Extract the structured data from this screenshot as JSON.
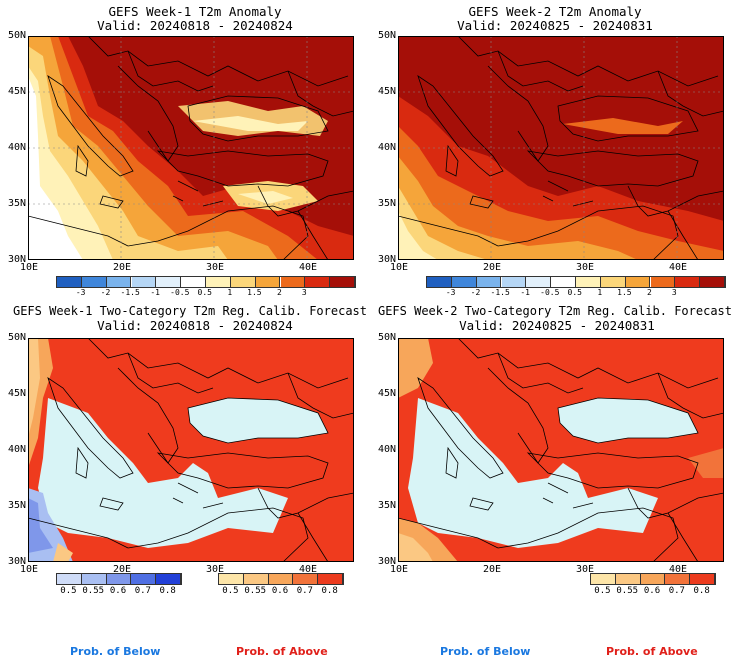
{
  "panels": [
    {
      "title": "GEFS Week-1 T2m Anomaly",
      "valid": "Valid: 20240818 - 20240824"
    },
    {
      "title": "GEFS Week-2 T2m Anomaly",
      "valid": "Valid: 20240825 - 20240831"
    },
    {
      "title": "GEFS Week-1 Two-Category T2m Reg. Calib. Forecast",
      "valid": "Valid: 20240818 - 20240824"
    },
    {
      "title": "GEFS Week-2 Two-Category T2m Reg. Calib. Forecast",
      "valid": "Valid: 20240825 - 20240831"
    }
  ],
  "lat_labels": [
    "50N",
    "45N",
    "40N",
    "35N",
    "30N"
  ],
  "lon_labels": [
    "10E",
    "20E",
    "30E",
    "40E"
  ],
  "anomaly_colorbar": {
    "ticks": [
      "-3",
      "-2",
      "-1.5",
      "-1",
      "-0.5",
      "0.5",
      "1",
      "1.5",
      "2",
      "3"
    ],
    "colors": [
      "#1f5fc0",
      "#3f86db",
      "#7ab3ec",
      "#b5d6f5",
      "#e2f0fb",
      "#ffffff",
      "#fff2b8",
      "#fbd67a",
      "#f5a53a",
      "#ec6a1c",
      "#d92a10",
      "#a50f08"
    ]
  },
  "below_colorbar": {
    "ticks": [
      "0.5",
      "0.55",
      "0.6",
      "0.7",
      "0.8"
    ],
    "colors": [
      "#cfdcf8",
      "#a9bff2",
      "#7f97ea",
      "#4f6fe3",
      "#2240d8"
    ]
  },
  "above_colorbar": {
    "ticks": [
      "0.5",
      "0.55",
      "0.6",
      "0.7",
      "0.8"
    ],
    "colors": [
      "#fde5a8",
      "#fbc883",
      "#f7a65a",
      "#f2733a",
      "#ec3b1e"
    ]
  },
  "legend": {
    "below": "Prob. of Below",
    "above": "Prob. of Above",
    "below_color": "#1a78e0",
    "above_color": "#e0201a"
  },
  "colors": {
    "sea": "#d8f4f6",
    "land_above": "#ef3b1e"
  }
}
